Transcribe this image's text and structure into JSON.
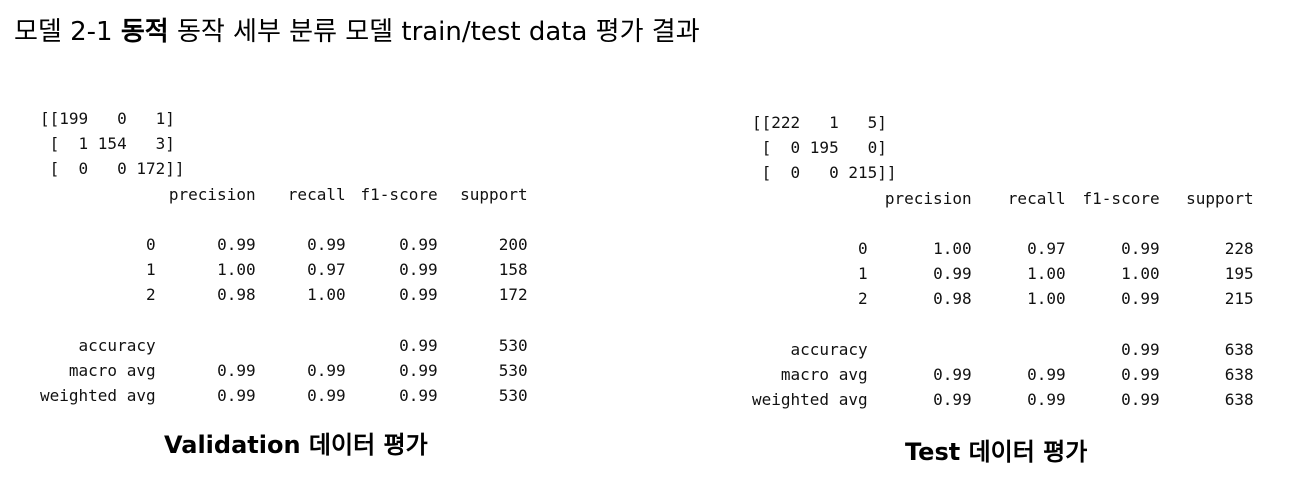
{
  "title": {
    "prefix": "모델 2-1 ",
    "bold": "동적",
    "suffix": " 동작 세부 분류 모델 train/test data 평가 결과"
  },
  "validation": {
    "matrix_lines": [
      "[[199   0   1]",
      " [  1 154   3]",
      " [  0   0 172]]"
    ],
    "header": [
      "",
      "precision",
      "recall",
      "f1-score",
      "support"
    ],
    "rows": [
      [
        "0",
        "0.99",
        "0.99",
        "0.99",
        "200"
      ],
      [
        "1",
        "1.00",
        "0.97",
        "0.99",
        "158"
      ],
      [
        "2",
        "0.98",
        "1.00",
        "0.99",
        "172"
      ]
    ],
    "summary": [
      [
        "accuracy",
        "",
        "",
        "0.99",
        "530"
      ],
      [
        "macro avg",
        "0.99",
        "0.99",
        "0.99",
        "530"
      ],
      [
        "weighted avg",
        "0.99",
        "0.99",
        "0.99",
        "530"
      ]
    ],
    "caption": "Validation 데이터 평가"
  },
  "test": {
    "matrix_lines": [
      "[[222   1   5]",
      " [  0 195   0]",
      " [  0   0 215]]"
    ],
    "header": [
      "",
      "precision",
      "recall",
      "f1-score",
      "support"
    ],
    "rows": [
      [
        "0",
        "1.00",
        "0.97",
        "0.99",
        "228"
      ],
      [
        "1",
        "0.99",
        "1.00",
        "1.00",
        "195"
      ],
      [
        "2",
        "0.98",
        "1.00",
        "0.99",
        "215"
      ]
    ],
    "summary": [
      [
        "accuracy",
        "",
        "",
        "0.99",
        "638"
      ],
      [
        "macro avg",
        "0.99",
        "0.99",
        "0.99",
        "638"
      ],
      [
        "weighted avg",
        "0.99",
        "0.99",
        "0.99",
        "638"
      ]
    ],
    "caption": "Test 데이터 평가"
  }
}
